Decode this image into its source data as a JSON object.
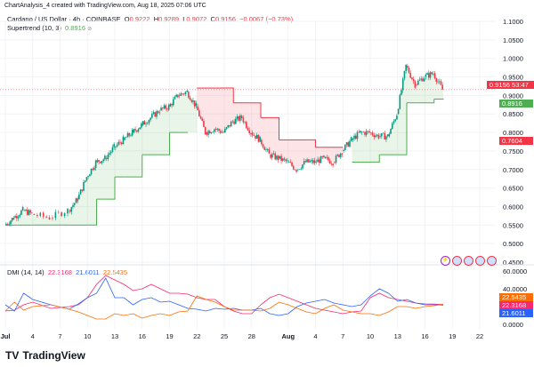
{
  "header": {
    "caption": "ChartAnalysis_4 created with TradingView.com, Aug 18, 2025 07:06 UTC",
    "symbol": "Cardano / US Dollar · 4h · COINBASE",
    "o_label": "O",
    "o": "0.9222",
    "h_label": "H",
    "h": "0.9289",
    "l_label": "L",
    "l": "0.9072",
    "c_label": "C",
    "c": "0.9156",
    "change": "−0.0067 (−0.73%)",
    "supertrend_label": "Supertrend (10, 3)",
    "supertrend_value": "0.8916"
  },
  "dmi_legend": {
    "label": "DMI (14, 14)",
    "v1": "22.3168",
    "v2": "21.6011",
    "v3": "22.5435"
  },
  "tags": {
    "price": "0.9156",
    "countdown": "53:47",
    "supertrend": "0.8916",
    "red_level": "0.7604",
    "dmi_orange": "22.5435",
    "dmi_pink": "22.3168",
    "dmi_blue": "21.6011"
  },
  "logo": "TradingView",
  "colors": {
    "up": "#089981",
    "down": "#f23645",
    "st_up": "#4caf50",
    "st_down": "#f23645",
    "pink": "#f7296e",
    "blue": "#2962ff",
    "orange": "#ff6d00"
  },
  "chart_data": [
    {
      "type": "candlestick",
      "title": "Cardano / US Dollar · 4h · COINBASE",
      "ylim": [
        0.45,
        1.1
      ],
      "price_ticks": [
        "1.1000",
        "1.0500",
        "1.0000",
        "0.9500",
        "0.9000",
        "0.8500",
        "0.8000",
        "0.7500",
        "0.7000",
        "0.6500",
        "0.6000",
        "0.5500",
        "0.5000",
        "0.4500"
      ],
      "x_ticks": [
        "Jul",
        "4",
        "7",
        "10",
        "13",
        "16",
        "19",
        "22",
        "25",
        "28",
        "Aug",
        "4",
        "7",
        "10",
        "13",
        "16",
        "19",
        "22"
      ],
      "dates": [
        "07-01",
        "07-02",
        "07-03",
        "07-04",
        "07-06",
        "07-08",
        "07-09",
        "07-10",
        "07-11",
        "07-12",
        "07-13",
        "07-14",
        "07-15",
        "07-16",
        "07-17",
        "07-18",
        "07-19",
        "07-20",
        "07-21",
        "07-22",
        "07-23",
        "07-24",
        "07-25",
        "07-26",
        "07-27",
        "07-28",
        "07-29",
        "07-30",
        "07-31",
        "08-01",
        "08-02",
        "08-03",
        "08-04",
        "08-05",
        "08-06",
        "08-07",
        "08-08",
        "08-09",
        "08-10",
        "08-11",
        "08-12",
        "08-13",
        "08-14",
        "08-15",
        "08-16",
        "08-17",
        "08-18"
      ],
      "close": [
        0.55,
        0.57,
        0.59,
        0.58,
        0.57,
        0.59,
        0.62,
        0.68,
        0.72,
        0.73,
        0.76,
        0.78,
        0.8,
        0.82,
        0.84,
        0.86,
        0.87,
        0.9,
        0.91,
        0.87,
        0.8,
        0.81,
        0.8,
        0.83,
        0.84,
        0.8,
        0.78,
        0.74,
        0.73,
        0.72,
        0.7,
        0.72,
        0.72,
        0.73,
        0.72,
        0.75,
        0.78,
        0.8,
        0.8,
        0.79,
        0.79,
        0.85,
        0.98,
        0.93,
        0.95,
        0.96,
        0.9156
      ],
      "supertrend": {
        "name": "Supertrend (10, 3)",
        "values": [
          0.55,
          0.55,
          0.55,
          0.55,
          0.55,
          0.55,
          0.55,
          0.55,
          0.62,
          0.62,
          0.68,
          0.68,
          0.68,
          0.74,
          0.74,
          0.74,
          0.8,
          0.8,
          0.8,
          0.92,
          0.92,
          0.92,
          0.92,
          0.88,
          0.88,
          0.88,
          0.84,
          0.84,
          0.78,
          0.78,
          0.78,
          0.78,
          0.76,
          0.76,
          0.76,
          0.76,
          0.72,
          0.72,
          0.72,
          0.74,
          0.74,
          0.74,
          0.88,
          0.88,
          0.88,
          0.89,
          0.8916
        ],
        "direction": [
          "up",
          "up",
          "up",
          "up",
          "up",
          "up",
          "up",
          "up",
          "up",
          "up",
          "up",
          "up",
          "up",
          "up",
          "up",
          "up",
          "up",
          "up",
          "up",
          "down",
          "down",
          "down",
          "down",
          "down",
          "down",
          "down",
          "down",
          "down",
          "down",
          "down",
          "down",
          "down",
          "down",
          "down",
          "down",
          "down",
          "up",
          "up",
          "up",
          "up",
          "up",
          "up",
          "up",
          "up",
          "up",
          "up",
          "up"
        ]
      }
    },
    {
      "type": "line",
      "title": "DMI (14, 14)",
      "ylim": [
        0,
        60
      ],
      "y_ticks": [
        "60.0000",
        "40.0000",
        "0.0000"
      ],
      "series": [
        {
          "color": "#f7296e",
          "values": [
            15,
            16,
            22,
            25,
            18,
            20,
            22,
            30,
            45,
            55,
            50,
            45,
            38,
            40,
            45,
            40,
            35,
            35,
            34,
            30,
            28,
            28,
            20,
            15,
            12,
            12,
            22,
            30,
            34,
            30,
            26,
            22,
            18,
            16,
            14,
            12,
            14,
            15,
            30,
            35,
            30,
            28,
            26,
            24,
            23,
            22.8,
            22.3168
          ]
        },
        {
          "color": "#2962ff",
          "values": [
            22,
            15,
            35,
            28,
            22,
            17,
            23,
            30,
            35,
            52,
            30,
            30,
            22,
            28,
            30,
            25,
            26,
            22,
            18,
            17,
            15,
            18,
            17,
            18,
            16,
            16,
            18,
            12,
            10,
            12,
            20,
            24,
            26,
            28,
            24,
            22,
            20,
            22,
            32,
            40,
            35,
            26,
            28,
            24,
            22,
            22,
            21.6011
          ]
        },
        {
          "color": "#ff6d00",
          "values": [
            15,
            25,
            16,
            20,
            22,
            17,
            14,
            10,
            6,
            6,
            12,
            10,
            12,
            7,
            10,
            12,
            10,
            14,
            15,
            32,
            28,
            25,
            20,
            16,
            16,
            16,
            15,
            18,
            25,
            22,
            18,
            14,
            12,
            18,
            22,
            16,
            14,
            12,
            12,
            10,
            14,
            20,
            20,
            18,
            20,
            21,
            22.5435
          ]
        }
      ]
    }
  ]
}
